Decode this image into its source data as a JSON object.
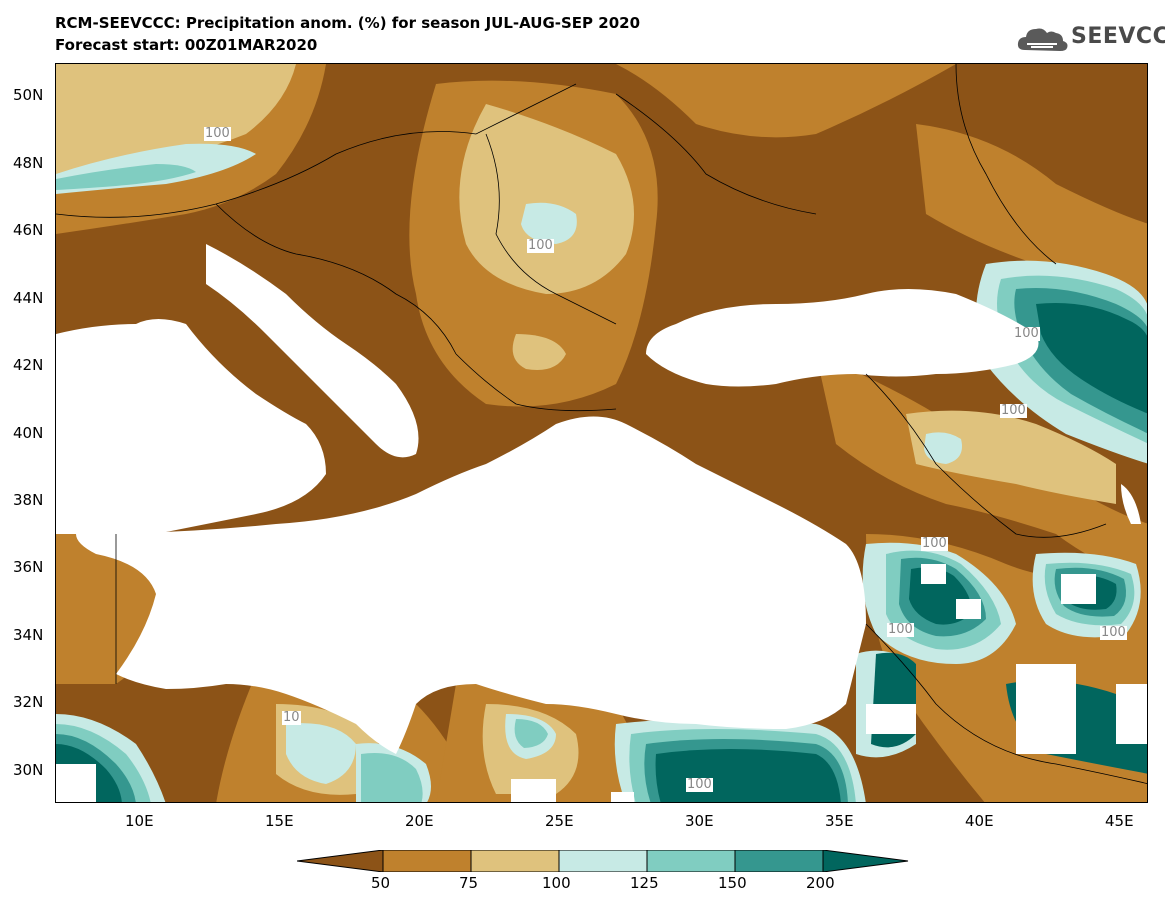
{
  "header": {
    "title_line1": "RCM-SEEVCCC: Precipitation anom. (%) for season JUL-AUG-SEP 2020",
    "title_line2": "Forecast start: 00Z01MAR2020",
    "logo_text": "SEEVCCC"
  },
  "map": {
    "lat_labels": [
      "50N",
      "48N",
      "46N",
      "44N",
      "42N",
      "40N",
      "38N",
      "36N",
      "34N",
      "32N",
      "30N"
    ],
    "lon_labels": [
      "10E",
      "15E",
      "20E",
      "25E",
      "30E",
      "35E",
      "40E",
      "45E"
    ],
    "contour_labels": [
      "100",
      "100",
      "100",
      "100",
      "100",
      "100",
      "100",
      "100",
      "10"
    ]
  },
  "legend": {
    "ticks": [
      "50",
      "75",
      "100",
      "125",
      "150",
      "200"
    ],
    "colors": [
      "#8c5317",
      "#bf812d",
      "#dfc27d",
      "#c7eae5",
      "#80cdc1",
      "#35978f",
      "#01665e"
    ]
  }
}
